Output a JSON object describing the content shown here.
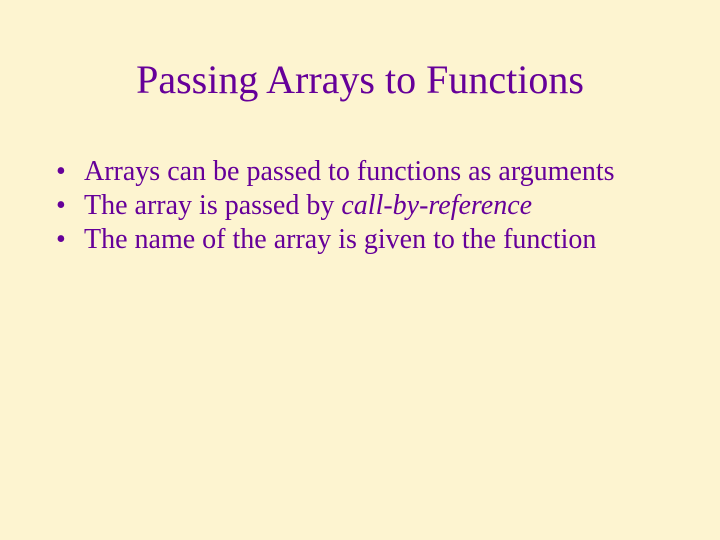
{
  "slide": {
    "background_color": "#fdf4d0",
    "text_color": "#660099",
    "title_fontsize": 40,
    "body_fontsize": 28,
    "font_family": "Times New Roman",
    "title": "Passing Arrays to Functions",
    "bullets": [
      {
        "pre": "Arrays can be passed to functions as arguments",
        "italic": "",
        "post": ""
      },
      {
        "pre": "The array is passed by ",
        "italic": "call-by-reference",
        "post": ""
      },
      {
        "pre": "The name of the array is given to the function",
        "italic": "",
        "post": ""
      }
    ]
  }
}
